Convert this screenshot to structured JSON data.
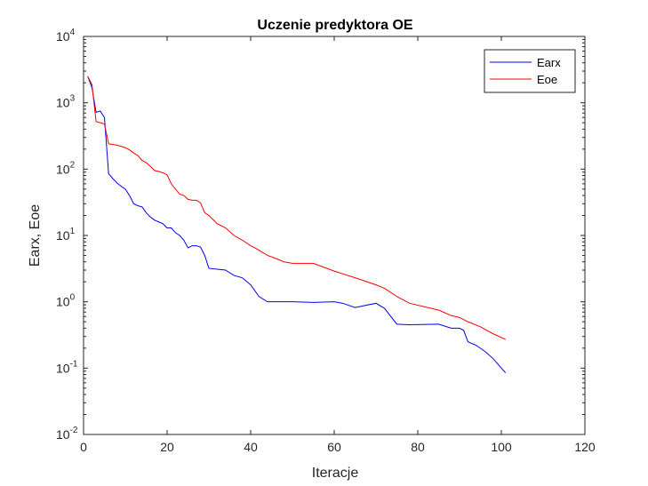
{
  "chart_data": {
    "type": "line",
    "title": "Uczenie predyktora OE",
    "xlabel": "Iteracje",
    "ylabel": "Earx, Eoe",
    "xlim": [
      0,
      120
    ],
    "ylim": [
      0.01,
      10000
    ],
    "yscale": "log",
    "grid": false,
    "legend_position": "top-right",
    "x_ticks": [
      0,
      20,
      40,
      60,
      80,
      100,
      120
    ],
    "y_ticks": [
      {
        "value": 0.01,
        "base": "10",
        "exp": "-2"
      },
      {
        "value": 0.1,
        "base": "10",
        "exp": "-1"
      },
      {
        "value": 1,
        "base": "10",
        "exp": "0"
      },
      {
        "value": 10,
        "base": "10",
        "exp": "1"
      },
      {
        "value": 100,
        "base": "10",
        "exp": "2"
      },
      {
        "value": 1000,
        "base": "10",
        "exp": "3"
      },
      {
        "value": 10000,
        "base": "10",
        "exp": "4"
      }
    ],
    "series": [
      {
        "name": "Earx",
        "color": "#0000ff",
        "x": [
          1,
          2,
          3,
          4,
          5,
          6,
          7,
          8,
          9,
          10,
          11,
          12,
          13,
          14,
          15,
          16,
          17,
          18,
          19,
          20,
          21,
          22,
          23,
          24,
          25,
          26,
          27,
          28,
          29,
          30,
          32,
          34,
          36,
          38,
          40,
          42,
          44,
          46,
          48,
          50,
          55,
          60,
          62,
          65,
          70,
          72,
          75,
          78,
          85,
          88,
          90,
          91,
          92,
          94,
          96,
          98,
          100,
          101
        ],
        "y": [
          2500,
          1700,
          720,
          750,
          600,
          85,
          72,
          62,
          55,
          50,
          40,
          30,
          28,
          27,
          22,
          19,
          17,
          16,
          15,
          13,
          13,
          11,
          10,
          8.5,
          6.5,
          7,
          7,
          6.7,
          5,
          3.2,
          3.1,
          3.0,
          2.5,
          2.3,
          1.8,
          1.2,
          1.0,
          1.0,
          1.0,
          1.0,
          0.98,
          1.0,
          0.95,
          0.82,
          0.95,
          0.8,
          0.46,
          0.45,
          0.46,
          0.4,
          0.4,
          0.37,
          0.25,
          0.22,
          0.18,
          0.14,
          0.1,
          0.085
        ]
      },
      {
        "name": "Eoe",
        "color": "#ff0000",
        "x": [
          1,
          2,
          3,
          4,
          5,
          6,
          7,
          8,
          9,
          10,
          11,
          12,
          13,
          14,
          15,
          16,
          17,
          18,
          19,
          20,
          21,
          22,
          23,
          24,
          25,
          26,
          27,
          28,
          29,
          30,
          32,
          34,
          36,
          38,
          40,
          42,
          44,
          46,
          48,
          50,
          55,
          60,
          65,
          70,
          72,
          75,
          78,
          85,
          88,
          90,
          92,
          95,
          98,
          100,
          101
        ],
        "y": [
          2500,
          1900,
          520,
          500,
          480,
          240,
          235,
          230,
          220,
          210,
          195,
          175,
          160,
          135,
          125,
          110,
          95,
          92,
          88,
          82,
          60,
          50,
          42,
          40,
          35,
          34,
          34,
          31,
          22,
          20,
          15,
          13,
          10,
          8.5,
          7,
          6,
          5,
          4.5,
          4,
          3.8,
          3.8,
          2.9,
          2.3,
          1.8,
          1.6,
          1.2,
          0.95,
          0.75,
          0.62,
          0.58,
          0.5,
          0.42,
          0.33,
          0.29,
          0.27
        ]
      }
    ]
  }
}
